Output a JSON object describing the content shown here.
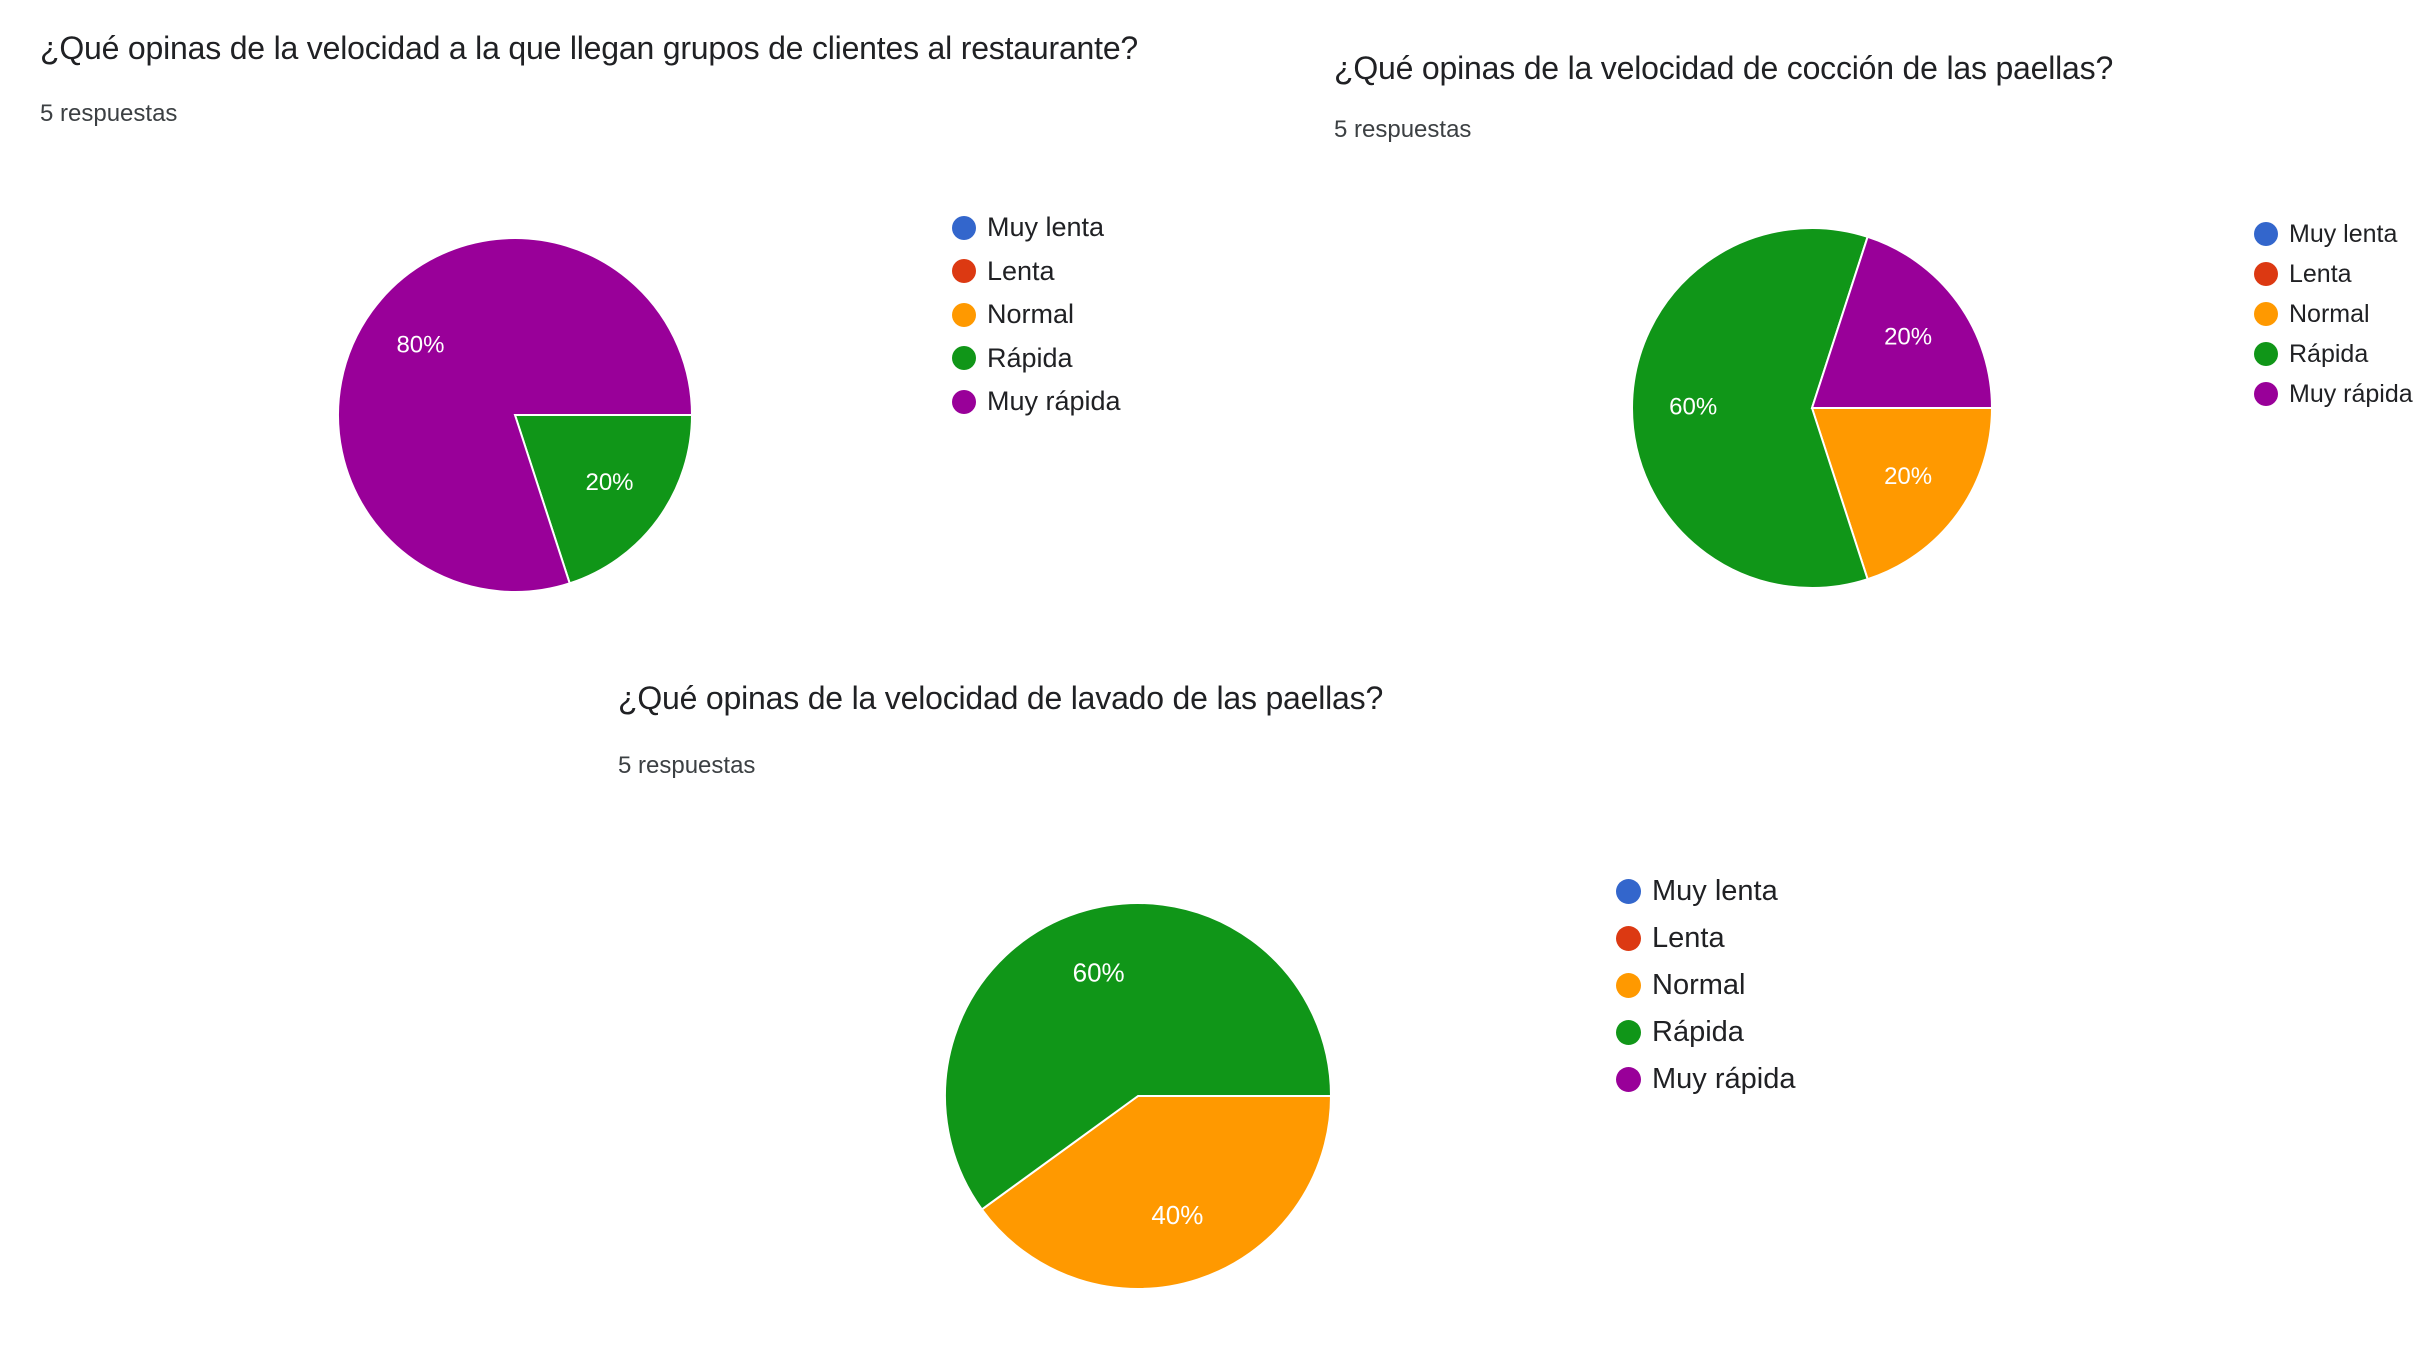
{
  "legend_colors": {
    "Muy lenta": "#3366cc",
    "Lenta": "#dc3912",
    "Normal": "#ff9900",
    "Rápida": "#109618",
    "Muy rápida": "#990099"
  },
  "chart_data": [
    {
      "type": "pie",
      "title": "¿Qué opinas de la velocidad a la que llegan grupos de clientes al restaurante?",
      "subtitle": "5 respuestas",
      "categories": [
        "Muy lenta",
        "Lenta",
        "Normal",
        "Rápida",
        "Muy rápida"
      ],
      "values": [
        0,
        0,
        0,
        20,
        80
      ],
      "data_labels": [
        "",
        "",
        "",
        "20%",
        "80%"
      ],
      "legend_placement": "right"
    },
    {
      "type": "pie",
      "title": "¿Qué opinas de la velocidad de cocción de las paellas?",
      "subtitle": "5 respuestas",
      "categories": [
        "Muy lenta",
        "Lenta",
        "Normal",
        "Rápida",
        "Muy rápida"
      ],
      "values": [
        0,
        0,
        20,
        60,
        20
      ],
      "data_labels": [
        "",
        "",
        "20%",
        "60%",
        "20%"
      ],
      "legend_placement": "right"
    },
    {
      "type": "pie",
      "title": "¿Qué opinas de la velocidad de lavado de las paellas?",
      "subtitle": "5 respuestas",
      "categories": [
        "Muy lenta",
        "Lenta",
        "Normal",
        "Rápida",
        "Muy rápida"
      ],
      "values": [
        0,
        0,
        40,
        60,
        0
      ],
      "data_labels": [
        "",
        "",
        "40%",
        "60%",
        ""
      ],
      "legend_placement": "right"
    }
  ]
}
